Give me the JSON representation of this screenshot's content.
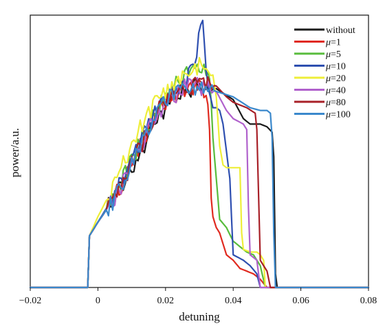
{
  "chart_data": {
    "type": "line",
    "title": "",
    "xlabel": "detuning",
    "ylabel": "power/a.u.",
    "xlim": [
      -0.02,
      0.08
    ],
    "ylim": [
      0,
      1.0
    ],
    "xticks": [
      -0.02,
      0,
      0.02,
      0.04,
      0.06,
      0.08
    ],
    "xtick_labels": [
      "−0.02",
      "0",
      "0.02",
      "0.04",
      "0.06",
      "0.08"
    ],
    "grid": false,
    "legend_position": "top-right",
    "series": [
      {
        "name": "without",
        "label_prefix": "",
        "label_value": "without",
        "color": "#1a1a1a",
        "x": [
          -0.02,
          -0.003,
          -0.0025,
          0.0,
          0.005,
          0.01,
          0.015,
          0.02,
          0.025,
          0.03,
          0.035,
          0.04,
          0.043,
          0.045,
          0.048,
          0.05,
          0.0515,
          0.052,
          0.0525,
          0.053,
          0.08
        ],
        "y": [
          0.0,
          0.0,
          0.19,
          0.24,
          0.33,
          0.44,
          0.56,
          0.66,
          0.72,
          0.74,
          0.73,
          0.69,
          0.62,
          0.6,
          0.6,
          0.59,
          0.57,
          0.48,
          0.05,
          0.0,
          0.0
        ]
      },
      {
        "name": "μ=1",
        "label_prefix": "μ",
        "label_value": "=1",
        "color": "#e02a20",
        "x": [
          -0.02,
          -0.003,
          -0.0025,
          0.0,
          0.005,
          0.01,
          0.015,
          0.02,
          0.025,
          0.03,
          0.032,
          0.033,
          0.0335,
          0.034,
          0.035,
          0.036,
          0.038,
          0.04,
          0.042,
          0.044,
          0.046,
          0.048,
          0.05,
          0.08
        ],
        "y": [
          0.0,
          0.0,
          0.19,
          0.24,
          0.33,
          0.45,
          0.58,
          0.68,
          0.73,
          0.73,
          0.72,
          0.6,
          0.35,
          0.26,
          0.22,
          0.2,
          0.12,
          0.1,
          0.07,
          0.06,
          0.05,
          0.03,
          0.0,
          0.0
        ]
      },
      {
        "name": "μ=5",
        "label_prefix": "μ",
        "label_value": "=5",
        "color": "#58bc3c",
        "x": [
          -0.02,
          -0.003,
          -0.0025,
          0.0,
          0.005,
          0.01,
          0.015,
          0.02,
          0.025,
          0.03,
          0.032,
          0.033,
          0.034,
          0.035,
          0.036,
          0.038,
          0.04,
          0.042,
          0.044,
          0.046,
          0.048,
          0.0495,
          0.08
        ],
        "y": [
          0.0,
          0.0,
          0.19,
          0.24,
          0.34,
          0.47,
          0.6,
          0.7,
          0.78,
          0.8,
          0.8,
          0.75,
          0.55,
          0.4,
          0.25,
          0.22,
          0.17,
          0.15,
          0.13,
          0.12,
          0.08,
          0.0,
          0.0
        ]
      },
      {
        "name": "μ=10",
        "label_prefix": "μ",
        "label_value": "=10",
        "color": "#2e4fb0",
        "x": [
          -0.02,
          -0.003,
          -0.0025,
          0.0,
          0.005,
          0.01,
          0.015,
          0.02,
          0.025,
          0.028,
          0.031,
          0.032,
          0.0325,
          0.033,
          0.0335,
          0.034,
          0.035,
          0.036,
          0.037,
          0.038,
          0.039,
          0.04,
          0.043,
          0.045,
          0.047,
          0.048,
          0.08
        ],
        "y": [
          0.0,
          0.0,
          0.19,
          0.24,
          0.34,
          0.47,
          0.6,
          0.7,
          0.76,
          0.8,
          0.98,
          0.82,
          0.72,
          0.7,
          0.68,
          0.66,
          0.66,
          0.65,
          0.6,
          0.5,
          0.4,
          0.12,
          0.1,
          0.08,
          0.05,
          0.0,
          0.0
        ]
      },
      {
        "name": "μ=20",
        "label_prefix": "μ",
        "label_value": "=20",
        "color": "#eeee38",
        "x": [
          -0.02,
          -0.003,
          -0.0025,
          0.0,
          0.005,
          0.01,
          0.015,
          0.02,
          0.025,
          0.028,
          0.03,
          0.032,
          0.034,
          0.035,
          0.036,
          0.037,
          0.038,
          0.04,
          0.042,
          0.0425,
          0.043,
          0.045,
          0.047,
          0.048,
          0.049,
          0.0495,
          0.08
        ],
        "y": [
          0.0,
          0.0,
          0.19,
          0.26,
          0.38,
          0.52,
          0.64,
          0.72,
          0.77,
          0.8,
          0.82,
          0.8,
          0.78,
          0.7,
          0.52,
          0.45,
          0.44,
          0.44,
          0.44,
          0.2,
          0.14,
          0.13,
          0.13,
          0.12,
          0.1,
          0.0,
          0.0
        ]
      },
      {
        "name": "μ=40",
        "label_prefix": "μ",
        "label_value": "=40",
        "color": "#b061cc",
        "x": [
          -0.02,
          -0.003,
          -0.0025,
          0.0,
          0.005,
          0.01,
          0.015,
          0.02,
          0.025,
          0.03,
          0.035,
          0.038,
          0.04,
          0.043,
          0.044,
          0.0445,
          0.045,
          0.046,
          0.047,
          0.0475,
          0.048,
          0.08
        ],
        "y": [
          0.0,
          0.0,
          0.19,
          0.24,
          0.33,
          0.45,
          0.58,
          0.68,
          0.73,
          0.74,
          0.72,
          0.65,
          0.62,
          0.6,
          0.58,
          0.3,
          0.12,
          0.11,
          0.1,
          0.05,
          0.0,
          0.0
        ]
      },
      {
        "name": "μ=80",
        "label_prefix": "μ",
        "label_value": "=80",
        "color": "#a82028",
        "x": [
          -0.02,
          -0.003,
          -0.0025,
          0.0,
          0.005,
          0.01,
          0.015,
          0.02,
          0.025,
          0.03,
          0.035,
          0.038,
          0.04,
          0.042,
          0.044,
          0.0465,
          0.047,
          0.048,
          0.05,
          0.051,
          0.08
        ],
        "y": [
          0.0,
          0.0,
          0.19,
          0.24,
          0.33,
          0.45,
          0.58,
          0.69,
          0.74,
          0.75,
          0.74,
          0.7,
          0.68,
          0.67,
          0.66,
          0.64,
          0.58,
          0.1,
          0.06,
          0.0,
          0.0
        ]
      },
      {
        "name": "μ=100",
        "label_prefix": "μ",
        "label_value": "=100",
        "color": "#3a88cc",
        "x": [
          -0.02,
          -0.003,
          -0.0025,
          0.0,
          0.005,
          0.01,
          0.015,
          0.02,
          0.025,
          0.03,
          0.035,
          0.04,
          0.045,
          0.048,
          0.05,
          0.051,
          0.0515,
          0.052,
          0.0525,
          0.08
        ],
        "y": [
          0.0,
          0.0,
          0.19,
          0.24,
          0.33,
          0.45,
          0.58,
          0.69,
          0.74,
          0.74,
          0.72,
          0.7,
          0.66,
          0.65,
          0.65,
          0.64,
          0.55,
          0.2,
          0.0,
          0.0
        ]
      }
    ]
  }
}
